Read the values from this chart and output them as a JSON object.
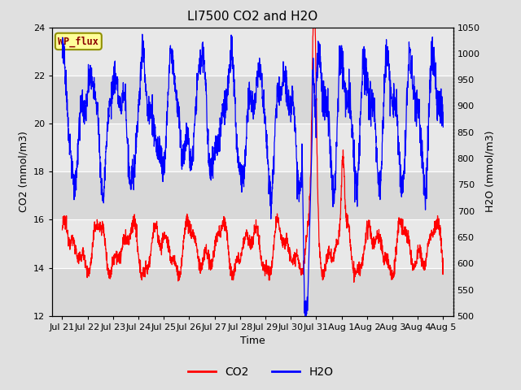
{
  "title": "LI7500 CO2 and H2O",
  "xlabel": "Time",
  "ylabel_left": "CO2 (mmol/m3)",
  "ylabel_right": "H2O (mmol/m3)",
  "co2_ylim": [
    12,
    24
  ],
  "h2o_ylim": [
    500,
    1050
  ],
  "co2_yticks": [
    12,
    14,
    16,
    18,
    20,
    22,
    24
  ],
  "h2o_yticks": [
    500,
    550,
    600,
    650,
    700,
    750,
    800,
    850,
    900,
    950,
    1000,
    1050
  ],
  "background_color": "#e0e0e0",
  "plot_bg_color": "#e8e8e8",
  "annotation_text": "WP_flux",
  "annotation_box_color": "#ffff99",
  "annotation_border_color": "#909000",
  "annotation_text_color": "#8b0000",
  "co2_color": "#ff0000",
  "h2o_color": "#0000ff",
  "legend_co2": "CO2",
  "legend_h2o": "H2O",
  "xtick_labels": [
    "Jul 21",
    "Jul 22",
    "Jul 23",
    "Jul 24",
    "Jul 25",
    "Jul 26",
    "Jul 27",
    "Jul 28",
    "Jul 29",
    "Jul 30",
    "Jul 31",
    "Aug 1",
    "Aug 2",
    "Aug 3",
    "Aug 4",
    "Aug 5"
  ],
  "xtick_positions": [
    21,
    22,
    23,
    24,
    25,
    26,
    27,
    28,
    29,
    30,
    31,
    32,
    33,
    34,
    35,
    36
  ],
  "xlim": [
    20.6,
    36.4
  ],
  "stripe_colors": [
    "#d8d8d8",
    "#e8e8e8"
  ]
}
